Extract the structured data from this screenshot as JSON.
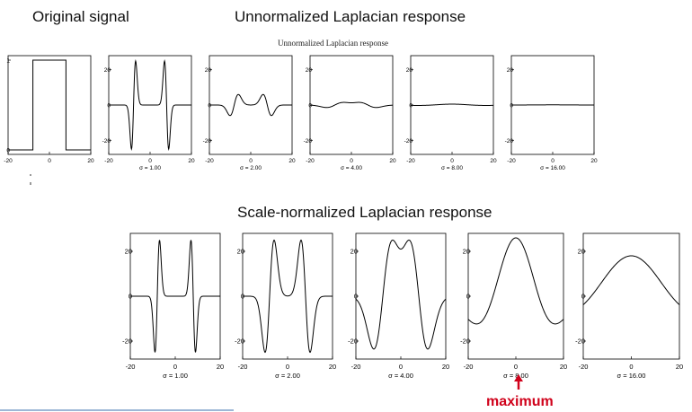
{
  "headings": {
    "original": "Original signal",
    "unnormalized": "Unnormalized Laplacian response",
    "normalized": "Scale-normalized Laplacian response"
  },
  "subtitle": "Unnormalized Laplacian response",
  "maximum_label": "maximum",
  "colors": {
    "curve": "#000000",
    "axes": "#000000",
    "highlight": "#d0021b"
  },
  "chart_data": [
    {
      "type": "line",
      "name": "original-signal",
      "xlim": [
        -20,
        20
      ],
      "ylim": [
        -0.05,
        1.05
      ],
      "xticks": [
        -20,
        0,
        20
      ],
      "xtick_labels": [
        "-20",
        "0",
        "20"
      ],
      "yticks": [
        0,
        1
      ],
      "ytick_labels": [
        "0",
        "1"
      ],
      "xlabel": "",
      "x": [
        -20,
        -8,
        -8,
        8,
        8,
        20
      ],
      "y": [
        0,
        0,
        1,
        1,
        0,
        0
      ]
    },
    {
      "type": "line",
      "name": "unnormalized-1",
      "kind": "unnormalized",
      "sigma": 1,
      "xlabel": "σ = 1.00",
      "xlim": [
        -20,
        20
      ],
      "ylim": [
        -28,
        28
      ],
      "xticks": [
        -20,
        0,
        20
      ],
      "yticks": [
        -20,
        0,
        20
      ],
      "amplitude": 25
    },
    {
      "type": "line",
      "name": "unnormalized-2",
      "kind": "unnormalized",
      "sigma": 2,
      "xlabel": "σ = 2.00",
      "xlim": [
        -20,
        20
      ],
      "ylim": [
        -28,
        28
      ],
      "xticks": [
        -20,
        0,
        20
      ],
      "yticks": [
        -20,
        0,
        20
      ],
      "amplitude": 6
    },
    {
      "type": "line",
      "name": "unnormalized-4",
      "kind": "unnormalized",
      "sigma": 4,
      "xlabel": "σ = 4.00",
      "xlim": [
        -20,
        20
      ],
      "ylim": [
        -28,
        28
      ],
      "xticks": [
        -20,
        0,
        20
      ],
      "yticks": [
        -20,
        0,
        20
      ],
      "amplitude": 1.5
    },
    {
      "type": "line",
      "name": "unnormalized-8",
      "kind": "unnormalized",
      "sigma": 8,
      "xlabel": "σ = 8.00",
      "xlim": [
        -20,
        20
      ],
      "ylim": [
        -28,
        28
      ],
      "xticks": [
        -20,
        0,
        20
      ],
      "yticks": [
        -20,
        0,
        20
      ],
      "amplitude": 0.5
    },
    {
      "type": "line",
      "name": "unnormalized-16",
      "kind": "unnormalized",
      "sigma": 16,
      "xlabel": "σ = 16.00",
      "xlim": [
        -20,
        20
      ],
      "ylim": [
        -28,
        28
      ],
      "xticks": [
        -20,
        0,
        20
      ],
      "yticks": [
        -20,
        0,
        20
      ],
      "amplitude": 0.1
    },
    {
      "type": "line",
      "name": "normalized-1",
      "kind": "normalized",
      "sigma": 1,
      "xlabel": "σ = 1.00",
      "xlim": [
        -20,
        20
      ],
      "ylim": [
        -28,
        28
      ],
      "xticks": [
        -20,
        0,
        20
      ],
      "yticks": [
        -20,
        0,
        20
      ],
      "amplitude": 25
    },
    {
      "type": "line",
      "name": "normalized-2",
      "kind": "normalized",
      "sigma": 2,
      "xlabel": "σ = 2.00",
      "xlim": [
        -20,
        20
      ],
      "ylim": [
        -28,
        28
      ],
      "xticks": [
        -20,
        0,
        20
      ],
      "yticks": [
        -20,
        0,
        20
      ],
      "amplitude": 25
    },
    {
      "type": "line",
      "name": "normalized-4",
      "kind": "normalized",
      "sigma": 4,
      "xlabel": "σ = 4.00",
      "xlim": [
        -20,
        20
      ],
      "ylim": [
        -28,
        28
      ],
      "xticks": [
        -20,
        0,
        20
      ],
      "yticks": [
        -20,
        0,
        20
      ],
      "amplitude": 25
    },
    {
      "type": "line",
      "name": "normalized-8",
      "kind": "normalized",
      "sigma": 8,
      "xlabel": "σ = 8.00",
      "xlim": [
        -20,
        20
      ],
      "ylim": [
        -28,
        28
      ],
      "xticks": [
        -20,
        0,
        20
      ],
      "yticks": [
        -20,
        0,
        20
      ],
      "amplitude": 26,
      "highlight": true
    },
    {
      "type": "line",
      "name": "normalized-16",
      "kind": "normalized",
      "sigma": 16,
      "xlabel": "σ = 16.00",
      "xlim": [
        -20,
        20
      ],
      "ylim": [
        -28,
        28
      ],
      "xticks": [
        -20,
        0,
        20
      ],
      "yticks": [
        -20,
        0,
        20
      ],
      "amplitude": 18
    }
  ]
}
